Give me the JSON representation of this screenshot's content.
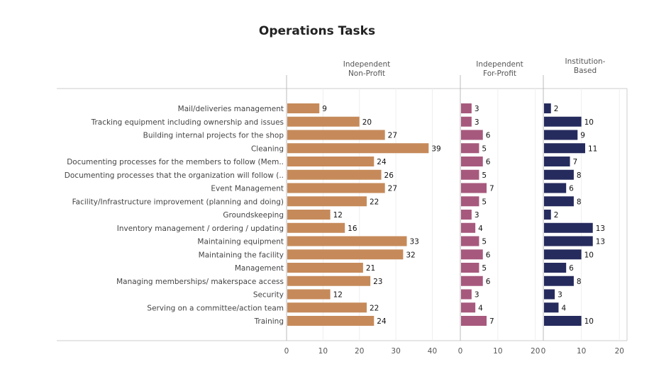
{
  "chart_data": {
    "type": "bar",
    "orientation": "horizontal",
    "title": "Operations Tasks",
    "categories": [
      "Mail/deliveries management",
      "Tracking equipment including ownership and issues",
      "Building internal projects for the shop",
      "Cleaning",
      "Documenting processes for the members to follow (Mem..",
      "Documenting processes that the organization will follow (..",
      "Event Management",
      "Facility/Infrastructure improvement (planning and doing)",
      "Groundskeeping",
      "Inventory management / ordering / updating",
      "Maintaining equipment",
      "Maintaining the facility",
      "Management",
      "Managing memberships/ makerspace access",
      "Security",
      "Serving on a committee/action team",
      "Training"
    ],
    "panels": [
      {
        "header": [
          "Independent",
          "Non-Profit"
        ],
        "color": "#c68a5a",
        "values": [
          9,
          20,
          27,
          39,
          24,
          26,
          27,
          22,
          12,
          16,
          33,
          32,
          21,
          23,
          12,
          22,
          24
        ],
        "xlim": [
          0,
          44
        ],
        "ticks": [
          0,
          10,
          20,
          30,
          40
        ],
        "grid": true
      },
      {
        "header": [
          "Independent",
          "For-Profit"
        ],
        "color": "#a7597d",
        "values": [
          3,
          3,
          6,
          5,
          6,
          5,
          7,
          5,
          3,
          4,
          5,
          6,
          5,
          6,
          3,
          4,
          7
        ],
        "xlim": [
          0,
          21
        ],
        "ticks": [
          0,
          10,
          20
        ],
        "grid": true
      },
      {
        "header": [
          "Institution-",
          "Based"
        ],
        "color": "#262b5e",
        "values": [
          2,
          10,
          9,
          11,
          7,
          8,
          6,
          8,
          2,
          13,
          13,
          10,
          6,
          8,
          3,
          4,
          10
        ],
        "xlim": [
          0,
          22
        ],
        "ticks": [
          0,
          10,
          20
        ],
        "grid": true
      }
    ]
  }
}
